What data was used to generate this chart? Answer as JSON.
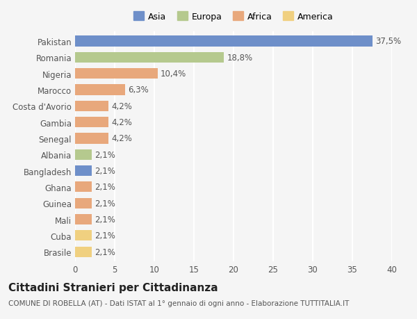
{
  "countries": [
    "Pakistan",
    "Romania",
    "Nigeria",
    "Marocco",
    "Costa d'Avorio",
    "Gambia",
    "Senegal",
    "Albania",
    "Bangladesh",
    "Ghana",
    "Guinea",
    "Mali",
    "Cuba",
    "Brasile"
  ],
  "values": [
    37.5,
    18.8,
    10.4,
    6.3,
    4.2,
    4.2,
    4.2,
    2.1,
    2.1,
    2.1,
    2.1,
    2.1,
    2.1,
    2.1
  ],
  "labels": [
    "37,5%",
    "18,8%",
    "10,4%",
    "6,3%",
    "4,2%",
    "4,2%",
    "4,2%",
    "2,1%",
    "2,1%",
    "2,1%",
    "2,1%",
    "2,1%",
    "2,1%",
    "2,1%"
  ],
  "colors": [
    "#6e8fc9",
    "#b5c98e",
    "#e8a87c",
    "#e8a87c",
    "#e8a87c",
    "#e8a87c",
    "#e8a87c",
    "#b5c98e",
    "#6e8fc9",
    "#e8a87c",
    "#e8a87c",
    "#e8a87c",
    "#f0d080",
    "#f0d080"
  ],
  "legend": [
    {
      "label": "Asia",
      "color": "#6e8fc9"
    },
    {
      "label": "Europa",
      "color": "#b5c98e"
    },
    {
      "label": "Africa",
      "color": "#e8a87c"
    },
    {
      "label": "America",
      "color": "#f0d080"
    }
  ],
  "xlim": [
    0,
    40
  ],
  "xticks": [
    0,
    5,
    10,
    15,
    20,
    25,
    30,
    35,
    40
  ],
  "title": "Cittadini Stranieri per Cittadinanza",
  "subtitle": "COMUNE DI ROBELLA (AT) - Dati ISTAT al 1° gennaio di ogni anno - Elaborazione TUTTITALIA.IT",
  "background_color": "#f5f5f5",
  "grid_color": "#ffffff",
  "bar_height": 0.65,
  "label_fontsize": 8.5,
  "axis_fontsize": 8.5,
  "title_fontsize": 11,
  "subtitle_fontsize": 7.5
}
